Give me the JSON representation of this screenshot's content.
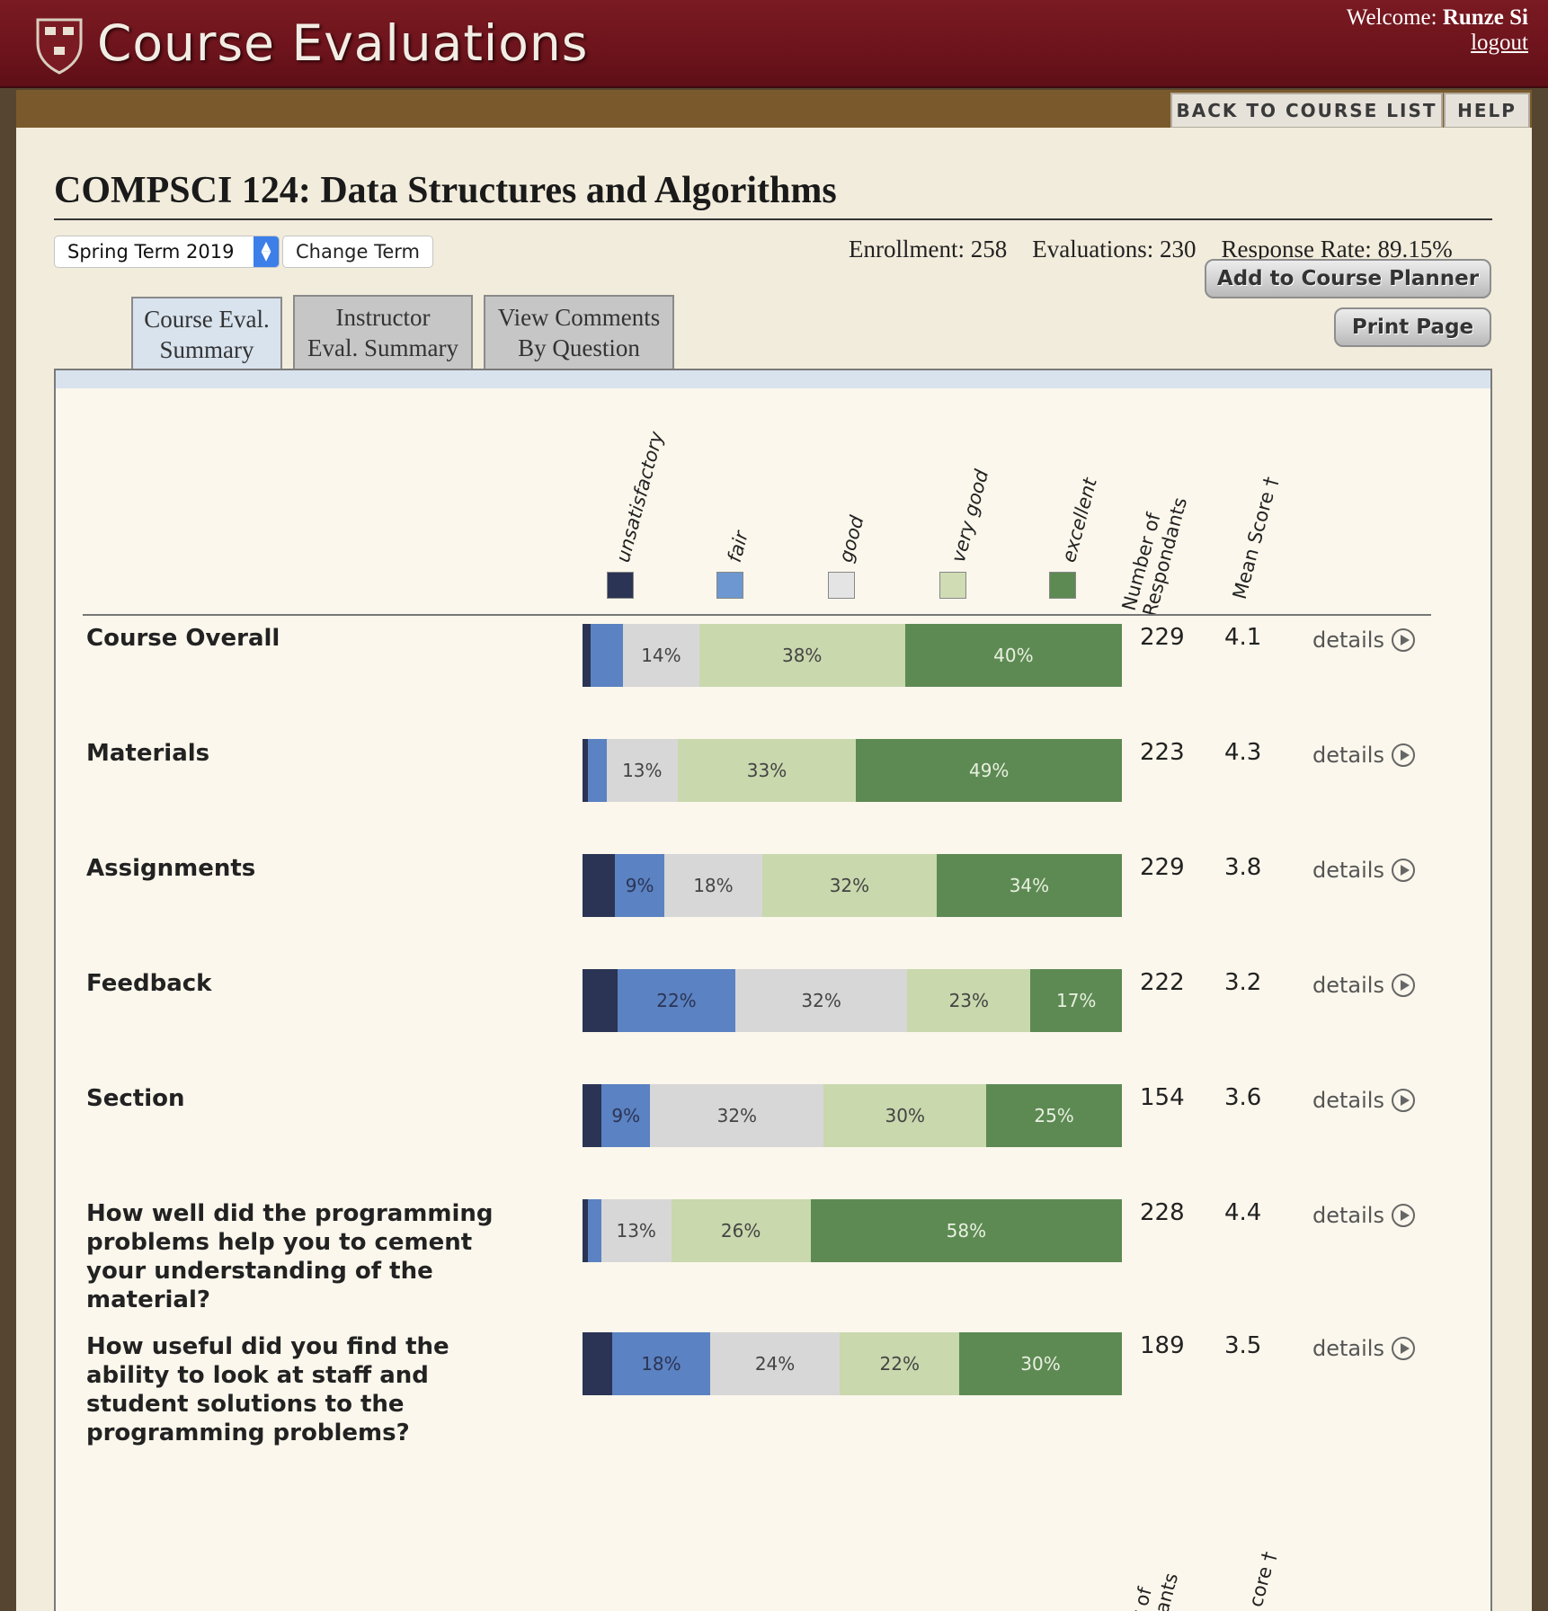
{
  "header": {
    "app_title": "Course Evaluations",
    "welcome_prefix": "Welcome:",
    "user_name": "Runze Si",
    "logout": "logout"
  },
  "nav": {
    "back": "BACK TO COURSE LIST",
    "help": "HELP"
  },
  "course": {
    "title": "COMPSCI 124: Data Structures and Algorithms",
    "term": "Spring Term 2019",
    "change_term": "Change Term",
    "enrollment": "Enrollment: 258",
    "evaluations": "Evaluations: 230",
    "response_rate": "Response Rate: 89.15%"
  },
  "actions": {
    "planner": "Add to Course Planner",
    "print": "Print Page"
  },
  "tabs": [
    {
      "line1": "Course Eval.",
      "line2": "Summary"
    },
    {
      "line1": "Instructor",
      "line2": "Eval. Summary"
    },
    {
      "line1": "View Comments",
      "line2": "By Question"
    }
  ],
  "columns": {
    "ratings": [
      "unsatisfactory",
      "fair",
      "good",
      "very good",
      "excellent"
    ],
    "respondents_line1": "Number of",
    "respondents_line2": "Respondants",
    "mean": "Mean Score †",
    "bottom_respondents_line1": "r of",
    "bottom_respondents_line2": "dants",
    "bottom_mean": "core †"
  },
  "colors": {
    "unsatisfactory": "#2b3454",
    "fair": "#5b82c2",
    "good": "#d7d7d7",
    "very_good": "#c9d8ad",
    "excellent": "#5d8a53"
  },
  "details_label": "details",
  "rows": [
    {
      "label": "Course Overall",
      "dist": [
        1.5,
        6,
        14,
        38,
        40
      ],
      "shown": [
        "",
        "",
        "14%",
        "38%",
        "40%"
      ],
      "respondents": "229",
      "mean": "4.1"
    },
    {
      "label": "Materials",
      "dist": [
        1,
        3.5,
        13,
        33,
        49
      ],
      "shown": [
        "",
        "",
        "13%",
        "33%",
        "49%"
      ],
      "respondents": "223",
      "mean": "4.3"
    },
    {
      "label": "Assignments",
      "dist": [
        6,
        9,
        18,
        32,
        34
      ],
      "shown": [
        "",
        "9%",
        "18%",
        "32%",
        "34%"
      ],
      "respondents": "229",
      "mean": "3.8"
    },
    {
      "label": "Feedback",
      "dist": [
        6.5,
        22,
        32,
        23,
        17
      ],
      "shown": [
        "",
        "22%",
        "32%",
        "23%",
        "17%"
      ],
      "respondents": "222",
      "mean": "3.2"
    },
    {
      "label": "Section",
      "dist": [
        3.5,
        9,
        32,
        30,
        25
      ],
      "shown": [
        "",
        "9%",
        "32%",
        "30%",
        "25%"
      ],
      "respondents": "154",
      "mean": "3.6"
    },
    {
      "label": "How well did the programming problems help you to cement your understanding of the material?",
      "dist": [
        1,
        2.5,
        13,
        26,
        58
      ],
      "shown": [
        "",
        "",
        "13%",
        "26%",
        "58%"
      ],
      "respondents": "228",
      "mean": "4.4"
    },
    {
      "label": "How useful did you find the ability to look at staff and student solutions to the programming problems?",
      "dist": [
        5.5,
        18,
        24,
        22,
        30
      ],
      "shown": [
        "",
        "18%",
        "24%",
        "22%",
        "30%"
      ],
      "respondents": "189",
      "mean": "3.5"
    }
  ]
}
